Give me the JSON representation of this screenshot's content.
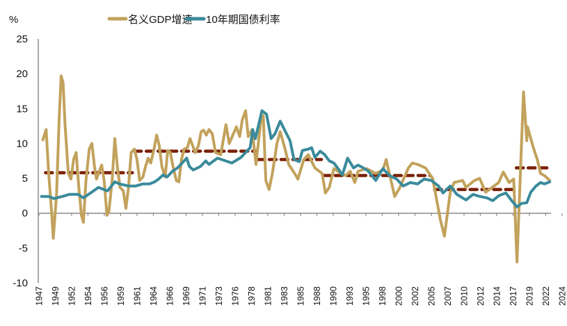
{
  "chart_data": {
    "type": "line",
    "title": "",
    "unit_label": "%",
    "ylim": [
      -10,
      25
    ],
    "xlim": [
      1946.9,
      2025.3
    ],
    "y_ticks": [
      25,
      20,
      15,
      10,
      5,
      0,
      -5,
      -10
    ],
    "x_tick_labels": [
      "1947",
      "1949",
      "1952",
      "1954",
      "1956",
      "1959",
      "1961",
      "1964",
      "1966",
      "1969",
      "1971",
      "1973",
      "1976",
      "1978",
      "1981",
      "1983",
      "1985",
      "1988",
      "1990",
      "1993",
      "1995",
      "1998",
      "2000",
      "2002",
      "2005",
      "2007",
      "2010",
      "2012",
      "2014",
      "2017",
      "2019",
      "2022",
      "2024"
    ],
    "grid": false,
    "legend_position": "top",
    "colors": {
      "gdp": "#c2a25c",
      "yield": "#3a8a9b",
      "average": "#7a1f05"
    },
    "series": [
      {
        "name": "名义GDP增速",
        "points": [
          [
            1947.6,
            10.5
          ],
          [
            1948.1,
            12
          ],
          [
            1948.5,
            5.7
          ],
          [
            1948.9,
            0.7
          ],
          [
            1949.2,
            -3.6
          ],
          [
            1949.7,
            2.7
          ],
          [
            1950.1,
            13.7
          ],
          [
            1950.4,
            19.7
          ],
          [
            1950.7,
            18.7
          ],
          [
            1951.0,
            12.7
          ],
          [
            1951.5,
            5.7
          ],
          [
            1951.9,
            4.9
          ],
          [
            1952.3,
            7.7
          ],
          [
            1952.7,
            8.7
          ],
          [
            1953.1,
            3.7
          ],
          [
            1953.5,
            -0.3
          ],
          [
            1953.8,
            -1.3
          ],
          [
            1954.2,
            4.7
          ],
          [
            1954.7,
            9.2
          ],
          [
            1955.1,
            10
          ],
          [
            1955.5,
            6.7
          ],
          [
            1955.8,
            4.9
          ],
          [
            1956.3,
            6.2
          ],
          [
            1956.6,
            6.9
          ],
          [
            1957.0,
            4.5
          ],
          [
            1957.4,
            -0.3
          ],
          [
            1957.7,
            0.2
          ],
          [
            1958.2,
            4.7
          ],
          [
            1958.6,
            10.7
          ],
          [
            1959.0,
            6.7
          ],
          [
            1959.4,
            3.7
          ],
          [
            1959.9,
            3.2
          ],
          [
            1960.3,
            0.7
          ],
          [
            1960.7,
            3.7
          ],
          [
            1961.1,
            8.7
          ],
          [
            1961.6,
            9.2
          ],
          [
            1962.0,
            7.7
          ],
          [
            1962.4,
            4.7
          ],
          [
            1962.9,
            5.2
          ],
          [
            1963.3,
            6.7
          ],
          [
            1963.7,
            7.9
          ],
          [
            1964.1,
            7.2
          ],
          [
            1964.6,
            9.2
          ],
          [
            1965.0,
            11.2
          ],
          [
            1965.4,
            9.7
          ],
          [
            1965.8,
            6.7
          ],
          [
            1966.3,
            5.2
          ],
          [
            1966.7,
            9
          ],
          [
            1967.1,
            8.7
          ],
          [
            1967.5,
            6.7
          ],
          [
            1968.0,
            4.7
          ],
          [
            1968.4,
            4.5
          ],
          [
            1968.8,
            7.7
          ],
          [
            1969.2,
            9.2
          ],
          [
            1969.7,
            9.4
          ],
          [
            1970.1,
            10.7
          ],
          [
            1970.5,
            9.7
          ],
          [
            1970.9,
            8.7
          ],
          [
            1971.4,
            9.7
          ],
          [
            1971.8,
            11.7
          ],
          [
            1972.2,
            11.9
          ],
          [
            1972.6,
            11.2
          ],
          [
            1973.0,
            12
          ],
          [
            1973.5,
            11.4
          ],
          [
            1974.0,
            8.7
          ],
          [
            1974.8,
            8.4
          ],
          [
            1975.6,
            12.7
          ],
          [
            1976.1,
            10
          ],
          [
            1977.2,
            12.4
          ],
          [
            1977.7,
            11
          ],
          [
            1978.1,
            13.4
          ],
          [
            1978.6,
            14.7
          ],
          [
            1979.0,
            11
          ],
          [
            1979.6,
            12
          ],
          [
            1980.2,
            7
          ],
          [
            1980.9,
            13
          ],
          [
            1981.3,
            14
          ],
          [
            1981.7,
            4.7
          ],
          [
            1982.2,
            3.4
          ],
          [
            1982.7,
            5.7
          ],
          [
            1983.4,
            10
          ],
          [
            1983.9,
            11.7
          ],
          [
            1984.7,
            9
          ],
          [
            1985.2,
            7
          ],
          [
            1986.3,
            5.4
          ],
          [
            1986.6,
            4.9
          ],
          [
            1987.5,
            7.7
          ],
          [
            1988.2,
            8.4
          ],
          [
            1989.2,
            6.5
          ],
          [
            1990.3,
            5.7
          ],
          [
            1990.8,
            2.9
          ],
          [
            1991.4,
            3.7
          ],
          [
            1992.1,
            6.4
          ],
          [
            1993.2,
            5.7
          ],
          [
            1993.9,
            5.4
          ],
          [
            1994.6,
            6
          ],
          [
            1995.3,
            4.4
          ],
          [
            1995.8,
            6
          ],
          [
            1997.1,
            6.4
          ],
          [
            1998.5,
            5.7
          ],
          [
            1999.6,
            6.2
          ],
          [
            2000.1,
            7.7
          ],
          [
            2001.4,
            2.4
          ],
          [
            2002.2,
            3.7
          ],
          [
            2003.5,
            6.5
          ],
          [
            2004.1,
            7.2
          ],
          [
            2004.9,
            7
          ],
          [
            2006.1,
            6.5
          ],
          [
            2007.2,
            5
          ],
          [
            2008.4,
            -1
          ],
          [
            2009.0,
            -3.3
          ],
          [
            2009.9,
            3
          ],
          [
            2010.5,
            4.4
          ],
          [
            2011.8,
            4.7
          ],
          [
            2012.3,
            3.7
          ],
          [
            2013.6,
            4.7
          ],
          [
            2014.4,
            5
          ],
          [
            2015.3,
            3
          ],
          [
            2016.3,
            3.7
          ],
          [
            2017.3,
            4.4
          ],
          [
            2018.0,
            5.9
          ],
          [
            2018.9,
            4.4
          ],
          [
            2019.6,
            4.9
          ],
          [
            2020.1,
            -7
          ],
          [
            2021.1,
            17.4
          ],
          [
            2021.6,
            10.4
          ],
          [
            2021.7,
            12.4
          ],
          [
            2022.6,
            9.4
          ],
          [
            2023.2,
            7.7
          ],
          [
            2023.7,
            5.7
          ],
          [
            2024.3,
            5.4
          ],
          [
            2025.1,
            4.7
          ]
        ]
      },
      {
        "name": "10年期国债利率",
        "points": [
          [
            1947.4,
            2.4
          ],
          [
            1948.5,
            2.4
          ],
          [
            1949.3,
            2.1
          ],
          [
            1950.6,
            2.4
          ],
          [
            1951.7,
            2.7
          ],
          [
            1953.0,
            2.7
          ],
          [
            1953.8,
            2.2
          ],
          [
            1954.9,
            2.9
          ],
          [
            1956.1,
            3.7
          ],
          [
            1957.5,
            3.2
          ],
          [
            1958.6,
            4.5
          ],
          [
            1959.3,
            4.2
          ],
          [
            1960.7,
            3.9
          ],
          [
            1961.8,
            3.9
          ],
          [
            1962.9,
            4.2
          ],
          [
            1963.9,
            4.2
          ],
          [
            1964.7,
            4.5
          ],
          [
            1965.3,
            4.9
          ],
          [
            1966.0,
            5.5
          ],
          [
            1966.6,
            5.2
          ],
          [
            1967.4,
            6
          ],
          [
            1968.2,
            6.5
          ],
          [
            1968.9,
            7.2
          ],
          [
            1969.6,
            7.9
          ],
          [
            1970.0,
            6.7
          ],
          [
            1970.6,
            6.2
          ],
          [
            1971.7,
            6.7
          ],
          [
            1972.5,
            7.5
          ],
          [
            1973.0,
            7
          ],
          [
            1974.3,
            7.9
          ],
          [
            1976.5,
            7.2
          ],
          [
            1977.9,
            8
          ],
          [
            1979.3,
            9.4
          ],
          [
            1979.7,
            12
          ],
          [
            1980.1,
            10.7
          ],
          [
            1981.1,
            14.7
          ],
          [
            1981.8,
            14.2
          ],
          [
            1982.5,
            10.7
          ],
          [
            1983.1,
            11.4
          ],
          [
            1983.9,
            13.2
          ],
          [
            1984.7,
            11.7
          ],
          [
            1985.4,
            10.4
          ],
          [
            1986.0,
            7.7
          ],
          [
            1986.8,
            7.4
          ],
          [
            1987.3,
            9
          ],
          [
            1988.2,
            9.2
          ],
          [
            1988.7,
            9.4
          ],
          [
            1989.2,
            8
          ],
          [
            1990.0,
            8.9
          ],
          [
            1990.7,
            8.4
          ],
          [
            1991.4,
            7.5
          ],
          [
            1992.1,
            7.2
          ],
          [
            1992.9,
            6.2
          ],
          [
            1993.4,
            5.5
          ],
          [
            1994.2,
            7.9
          ],
          [
            1995.1,
            6.5
          ],
          [
            1995.8,
            6.9
          ],
          [
            1996.6,
            6.5
          ],
          [
            1997.4,
            6
          ],
          [
            1998.5,
            4.7
          ],
          [
            1999.6,
            6.4
          ],
          [
            2000.6,
            5.4
          ],
          [
            2001.7,
            4.9
          ],
          [
            2002.7,
            3.9
          ],
          [
            2003.8,
            4.4
          ],
          [
            2004.9,
            4.2
          ],
          [
            2005.9,
            4.9
          ],
          [
            2007.0,
            4.7
          ],
          [
            2008.1,
            3.9
          ],
          [
            2008.8,
            2.9
          ],
          [
            2009.9,
            3.9
          ],
          [
            2010.9,
            2.7
          ],
          [
            2012.3,
            1.9
          ],
          [
            2013.4,
            2.7
          ],
          [
            2014.4,
            2.4
          ],
          [
            2015.5,
            2.2
          ],
          [
            2016.4,
            1.8
          ],
          [
            2017.3,
            2.5
          ],
          [
            2018.4,
            2.9
          ],
          [
            2019.2,
            1.9
          ],
          [
            2020.1,
            0.9
          ],
          [
            2020.8,
            1.4
          ],
          [
            2021.6,
            1.5
          ],
          [
            2022.2,
            3.0
          ],
          [
            2023.0,
            3.9
          ],
          [
            2023.7,
            4.4
          ],
          [
            2024.3,
            4.2
          ],
          [
            2025.1,
            4.5
          ]
        ]
      }
    ],
    "period_averages": [
      {
        "from": 1948.0,
        "to": 1961.3,
        "value": 5.8
      },
      {
        "from": 1961.6,
        "to": 1980.2,
        "value": 8.9
      },
      {
        "from": 1980.4,
        "to": 1990.2,
        "value": 7.7
      },
      {
        "from": 1990.5,
        "to": 2006.8,
        "value": 5.4
      },
      {
        "from": 2007.5,
        "to": 2019.8,
        "value": 3.4
      },
      {
        "from": 2020.0,
        "to": 2025.1,
        "value": 6.5
      }
    ]
  }
}
